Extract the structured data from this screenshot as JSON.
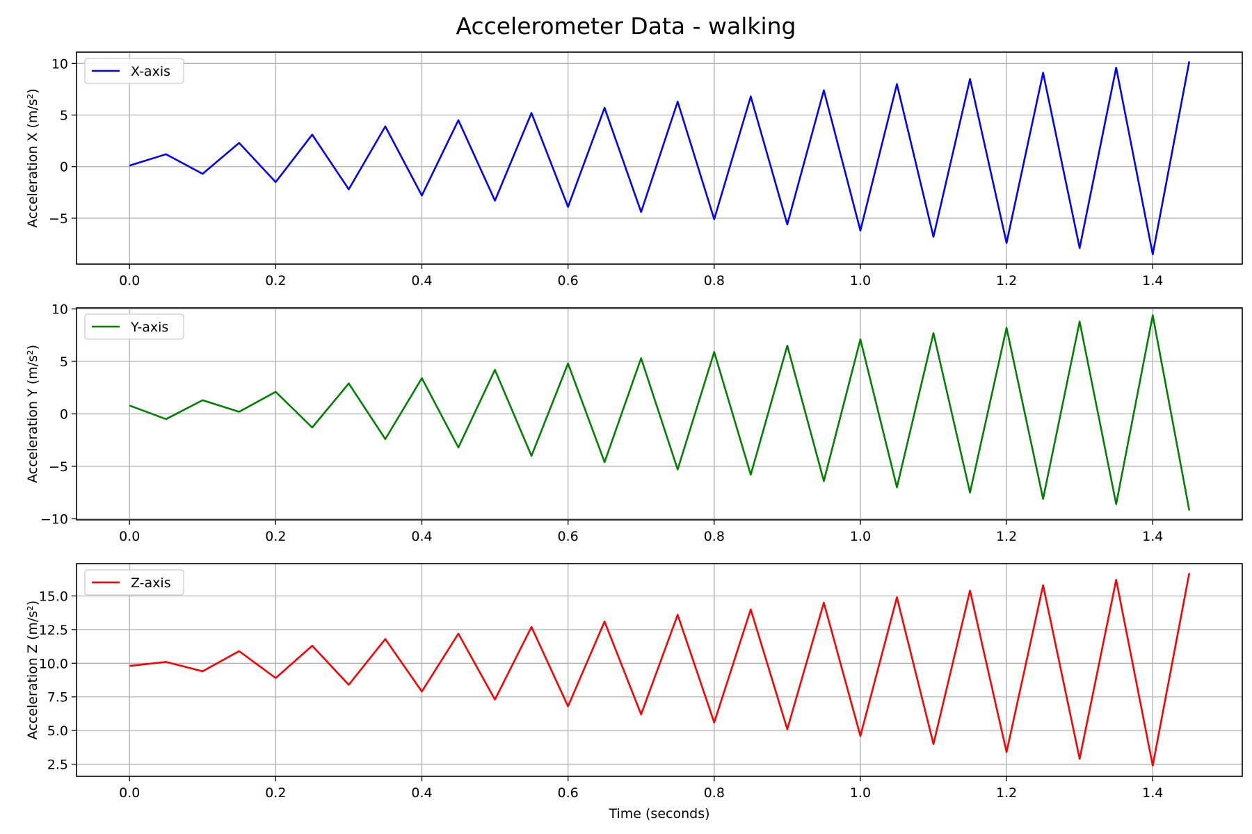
{
  "title": "Accelerometer Data - walking",
  "chart_data": [
    {
      "type": "line",
      "ylabel": "Acceleration X (m/s²)",
      "xlabel": "",
      "xlim": [
        -0.0725,
        1.5225
      ],
      "ylim": [
        -9.45,
        11.1
      ],
      "yticks": [
        -5,
        0,
        5,
        10
      ],
      "xticks": [
        0.0,
        0.2,
        0.4,
        0.6,
        0.8,
        1.0,
        1.2,
        1.4
      ],
      "grid": true,
      "legend_position": "upper left",
      "series": [
        {
          "name": "X-axis",
          "color": "#0000ff",
          "x": [
            0.0,
            0.05,
            0.1,
            0.15,
            0.2,
            0.25,
            0.3,
            0.35,
            0.4,
            0.45,
            0.5,
            0.55,
            0.6,
            0.65,
            0.7,
            0.75,
            0.8,
            0.85,
            0.9,
            0.95,
            1.0,
            1.05,
            1.1,
            1.15,
            1.2,
            1.25,
            1.3,
            1.35,
            1.4,
            1.45
          ],
          "values": [
            0.1,
            1.2,
            -0.7,
            2.3,
            -1.5,
            3.1,
            -2.2,
            3.9,
            -2.8,
            4.5,
            -3.3,
            5.2,
            -3.9,
            5.7,
            -4.4,
            6.3,
            -5.1,
            6.8,
            -5.6,
            7.4,
            -6.2,
            8.0,
            -6.8,
            8.5,
            -7.4,
            9.1,
            -7.9,
            9.6,
            -8.5,
            10.2
          ]
        }
      ]
    },
    {
      "type": "line",
      "ylabel": "Acceleration Y (m/s²)",
      "xlabel": "",
      "xlim": [
        -0.0725,
        1.5225
      ],
      "ylim": [
        -10.1,
        10.1
      ],
      "yticks": [
        -10,
        -5,
        0,
        5,
        10
      ],
      "xticks": [
        0.0,
        0.2,
        0.4,
        0.6,
        0.8,
        1.0,
        1.2,
        1.4
      ],
      "grid": true,
      "legend_position": "upper left",
      "series": [
        {
          "name": "Y-axis",
          "color": "#008000",
          "x": [
            0.0,
            0.05,
            0.1,
            0.15,
            0.2,
            0.25,
            0.3,
            0.35,
            0.4,
            0.45,
            0.5,
            0.55,
            0.6,
            0.65,
            0.7,
            0.75,
            0.8,
            0.85,
            0.9,
            0.95,
            1.0,
            1.05,
            1.1,
            1.15,
            1.2,
            1.25,
            1.3,
            1.35,
            1.4,
            1.45
          ],
          "values": [
            0.8,
            -0.5,
            1.3,
            0.2,
            2.1,
            -1.3,
            2.9,
            -2.4,
            3.4,
            -3.2,
            4.2,
            -4.0,
            4.8,
            -4.6,
            5.3,
            -5.3,
            5.9,
            -5.8,
            6.5,
            -6.4,
            7.1,
            -7.0,
            7.7,
            -7.5,
            8.2,
            -8.1,
            8.8,
            -8.6,
            9.4,
            -9.2
          ]
        }
      ]
    },
    {
      "type": "line",
      "ylabel": "Acceleration Z (m/s²)",
      "xlabel": "Time (seconds)",
      "xlim": [
        -0.0725,
        1.5225
      ],
      "ylim": [
        1.6,
        17.4
      ],
      "yticks": [
        2.5,
        5.0,
        7.5,
        10.0,
        12.5,
        15.0
      ],
      "xticks": [
        0.0,
        0.2,
        0.4,
        0.6,
        0.8,
        1.0,
        1.2,
        1.4
      ],
      "grid": true,
      "legend_position": "upper left",
      "series": [
        {
          "name": "Z-axis",
          "color": "#ff0000",
          "x": [
            0.0,
            0.05,
            0.1,
            0.15,
            0.2,
            0.25,
            0.3,
            0.35,
            0.4,
            0.45,
            0.5,
            0.55,
            0.6,
            0.65,
            0.7,
            0.75,
            0.8,
            0.85,
            0.9,
            0.95,
            1.0,
            1.05,
            1.1,
            1.15,
            1.2,
            1.25,
            1.3,
            1.35,
            1.4,
            1.45
          ],
          "values": [
            9.8,
            10.1,
            9.4,
            10.9,
            8.9,
            11.3,
            8.4,
            11.8,
            7.9,
            12.2,
            7.3,
            12.7,
            6.8,
            13.1,
            6.2,
            13.6,
            5.6,
            14.0,
            5.1,
            14.5,
            4.6,
            14.9,
            4.0,
            15.4,
            3.4,
            15.8,
            2.9,
            16.2,
            2.4,
            16.7
          ]
        }
      ]
    }
  ]
}
